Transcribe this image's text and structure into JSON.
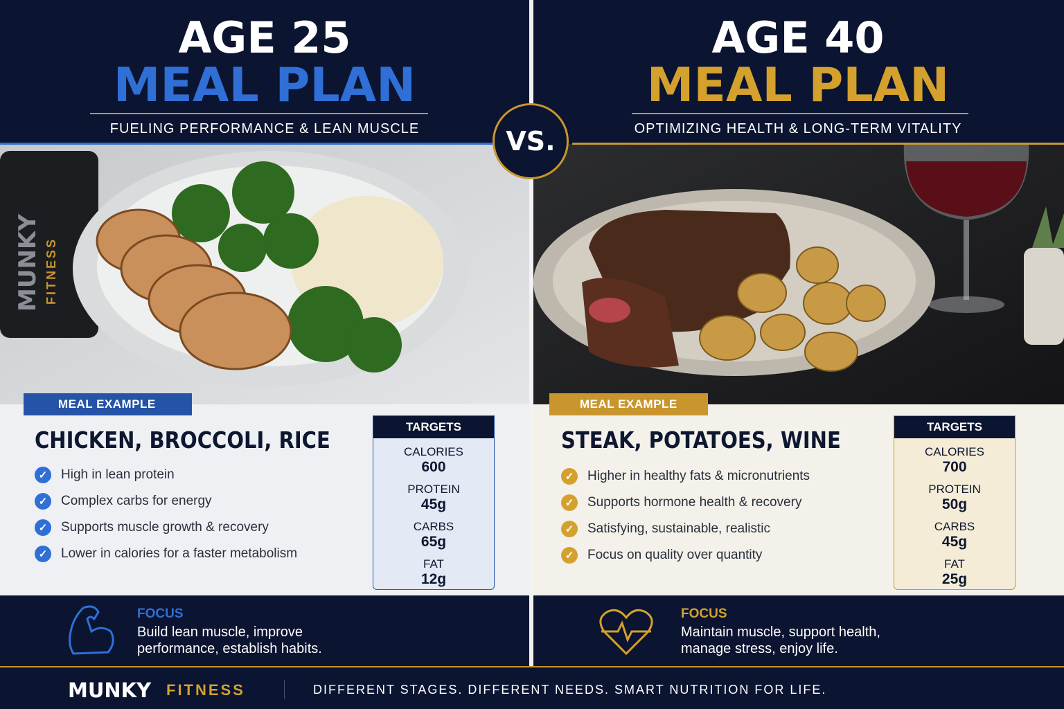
{
  "left": {
    "title_line1": "AGE 25",
    "title_line2": "MEAL PLAN",
    "subtitle": "FUELING PERFORMANCE & LEAN MUSCLE",
    "shaker_brand": "MUNKY",
    "shaker_accent": "FITNESS",
    "badge": "MEAL EXAMPLE",
    "meal": "CHICKEN, BROCCOLI, RICE",
    "points": [
      "High in lean protein",
      "Complex carbs for energy",
      "Supports muscle growth & recovery",
      "Lower in calories for a faster metabolism"
    ],
    "targets": {
      "heading": "TARGETS",
      "items": [
        {
          "label": "CALORIES",
          "value": 600
        },
        {
          "label": "PROTEIN",
          "value": "45g"
        },
        {
          "label": "CARBS",
          "value": "65g"
        },
        {
          "label": "FAT",
          "value": "12g"
        }
      ]
    },
    "focus": {
      "heading": "FOCUS",
      "text": "Build lean muscle, improve performance, establish habits."
    }
  },
  "vs": "VS.",
  "right": {
    "title_line1": "AGE 40",
    "title_line2": "MEAL PLAN",
    "subtitle": "OPTIMIZING HEALTH & LONG-TERM VITALITY",
    "badge": "MEAL EXAMPLE",
    "meal": "STEAK, POTATOES, WINE",
    "points": [
      "Higher in healthy fats & micronutrients",
      "Supports hormone health & recovery",
      "Satisfying, sustainable, realistic",
      "Focus on quality over quantity"
    ],
    "targets": {
      "heading": "TARGETS",
      "items": [
        {
          "label": "CALORIES",
          "value": 700
        },
        {
          "label": "PROTEIN",
          "value": "50g"
        },
        {
          "label": "CARBS",
          "value": "45g"
        },
        {
          "label": "FAT",
          "value": "25g"
        }
      ]
    },
    "focus": {
      "heading": "FOCUS",
      "text": "Maintain muscle, support health, manage stress, enjoy life."
    }
  },
  "footer": {
    "brand": "MUNKY",
    "brand_accent": "FITNESS",
    "tagline": "DIFFERENT STAGES. DIFFERENT NEEDS. SMART NUTRITION FOR LIFE."
  }
}
